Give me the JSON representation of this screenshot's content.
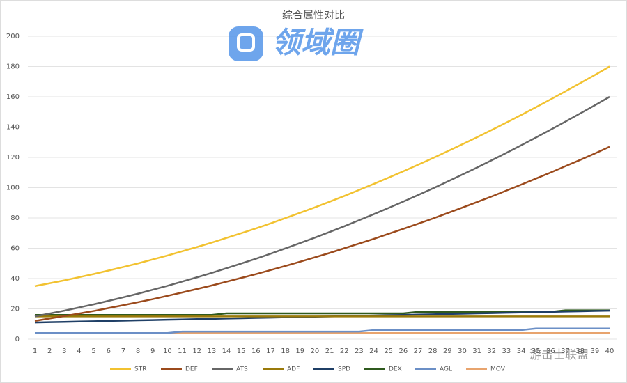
{
  "chart_data": {
    "type": "line",
    "title": "综合属性对比",
    "watermarks": [
      "领域圈",
      "游击士联盟"
    ],
    "x": [
      1,
      2,
      3,
      4,
      5,
      6,
      7,
      8,
      9,
      10,
      11,
      12,
      13,
      14,
      15,
      16,
      17,
      18,
      19,
      20,
      21,
      22,
      23,
      24,
      25,
      26,
      27,
      28,
      29,
      30,
      31,
      32,
      33,
      34,
      35,
      36,
      37,
      38,
      39,
      40
    ],
    "xlim": [
      1,
      40
    ],
    "ylim": [
      0,
      200
    ],
    "yticks": [
      0,
      20,
      40,
      60,
      80,
      100,
      120,
      140,
      160,
      180,
      200
    ],
    "grid": true,
    "legend": "bottom",
    "series": [
      {
        "name": "STR",
        "color": "#f2c230",
        "values": [
          35.0,
          36.9,
          38.8,
          40.9,
          43.0,
          45.3,
          47.6,
          50.0,
          52.6,
          55.2,
          58.0,
          60.8,
          63.7,
          66.8,
          69.9,
          73.1,
          76.4,
          79.9,
          83.4,
          87.0,
          90.7,
          94.5,
          98.5,
          102.5,
          106.6,
          110.8,
          115.1,
          119.5,
          124.0,
          128.6,
          133.3,
          138.1,
          143.0,
          148.0,
          153.1,
          158.3,
          163.6,
          169.0,
          174.4,
          180.0
        ]
      },
      {
        "name": "DEF",
        "color": "#9b4a1c",
        "values": [
          12.0,
          13.6,
          15.2,
          16.9,
          18.6,
          20.5,
          22.4,
          24.4,
          26.4,
          28.6,
          30.8,
          33.1,
          35.4,
          37.9,
          40.4,
          42.9,
          45.6,
          48.3,
          51.1,
          54.0,
          56.9,
          60.0,
          63.1,
          66.2,
          69.5,
          72.8,
          76.2,
          79.6,
          83.2,
          86.8,
          90.5,
          94.2,
          98.1,
          102.0,
          106.0,
          110.0,
          114.2,
          118.3,
          122.6,
          127.0
        ]
      },
      {
        "name": "ATS",
        "color": "#666666",
        "values": [
          15.0,
          16.9,
          18.8,
          20.9,
          23.0,
          25.3,
          27.6,
          30.0,
          32.6,
          35.2,
          38.0,
          40.8,
          43.7,
          46.8,
          49.9,
          53.1,
          56.4,
          59.9,
          63.4,
          67.0,
          70.7,
          74.5,
          78.5,
          82.5,
          86.6,
          90.8,
          95.1,
          99.5,
          104.0,
          108.6,
          113.3,
          118.1,
          123.0,
          128.0,
          133.1,
          138.3,
          143.6,
          149.0,
          154.4,
          160.0
        ]
      },
      {
        "name": "ADF",
        "color": "#9a7a0a",
        "values": [
          15,
          15,
          15,
          15,
          15,
          15,
          15,
          15,
          15,
          15,
          15,
          15,
          15,
          15,
          15,
          15,
          15,
          15,
          15,
          15,
          15,
          15,
          15,
          15,
          15,
          15,
          15,
          15,
          15,
          15,
          15,
          15,
          15,
          15,
          15,
          15,
          15,
          15,
          15,
          15
        ]
      },
      {
        "name": "SPD",
        "color": "#1f3f66",
        "values": [
          11.0,
          11.2,
          11.4,
          11.6,
          11.8,
          12.0,
          12.2,
          12.4,
          12.6,
          12.8,
          13.0,
          13.2,
          13.4,
          13.6,
          13.8,
          14.0,
          14.2,
          14.4,
          14.6,
          14.8,
          15.0,
          15.2,
          15.4,
          15.6,
          15.8,
          16.0,
          16.2,
          16.4,
          16.6,
          16.8,
          17.0,
          17.2,
          17.4,
          17.6,
          17.8,
          18.0,
          18.2,
          18.4,
          18.6,
          18.8
        ]
      },
      {
        "name": "DEX",
        "color": "#2f5a1e",
        "values": [
          16,
          16,
          16,
          16,
          16,
          16,
          16,
          16,
          16,
          16,
          16,
          16,
          16,
          17,
          17,
          17,
          17,
          17,
          17,
          17,
          17,
          17,
          17,
          17,
          17,
          17,
          18,
          18,
          18,
          18,
          18,
          18,
          18,
          18,
          18,
          18,
          19,
          19,
          19,
          19
        ]
      },
      {
        "name": "AGL",
        "color": "#6b8fc6",
        "values": [
          4,
          4,
          4,
          4,
          4,
          4,
          4,
          4,
          4,
          4,
          5,
          5,
          5,
          5,
          5,
          5,
          5,
          5,
          5,
          5,
          5,
          5,
          5,
          6,
          6,
          6,
          6,
          6,
          6,
          6,
          6,
          6,
          6,
          6,
          7,
          7,
          7,
          7,
          7,
          7
        ]
      },
      {
        "name": "MOV",
        "color": "#e8a46e",
        "values": [
          4,
          4,
          4,
          4,
          4,
          4,
          4,
          4,
          4,
          4,
          4,
          4,
          4,
          4,
          4,
          4,
          4,
          4,
          4,
          4,
          4,
          4,
          4,
          4,
          4,
          4,
          4,
          4,
          4,
          4,
          4,
          4,
          4,
          4,
          4,
          4,
          4,
          4,
          4,
          4
        ]
      }
    ]
  }
}
